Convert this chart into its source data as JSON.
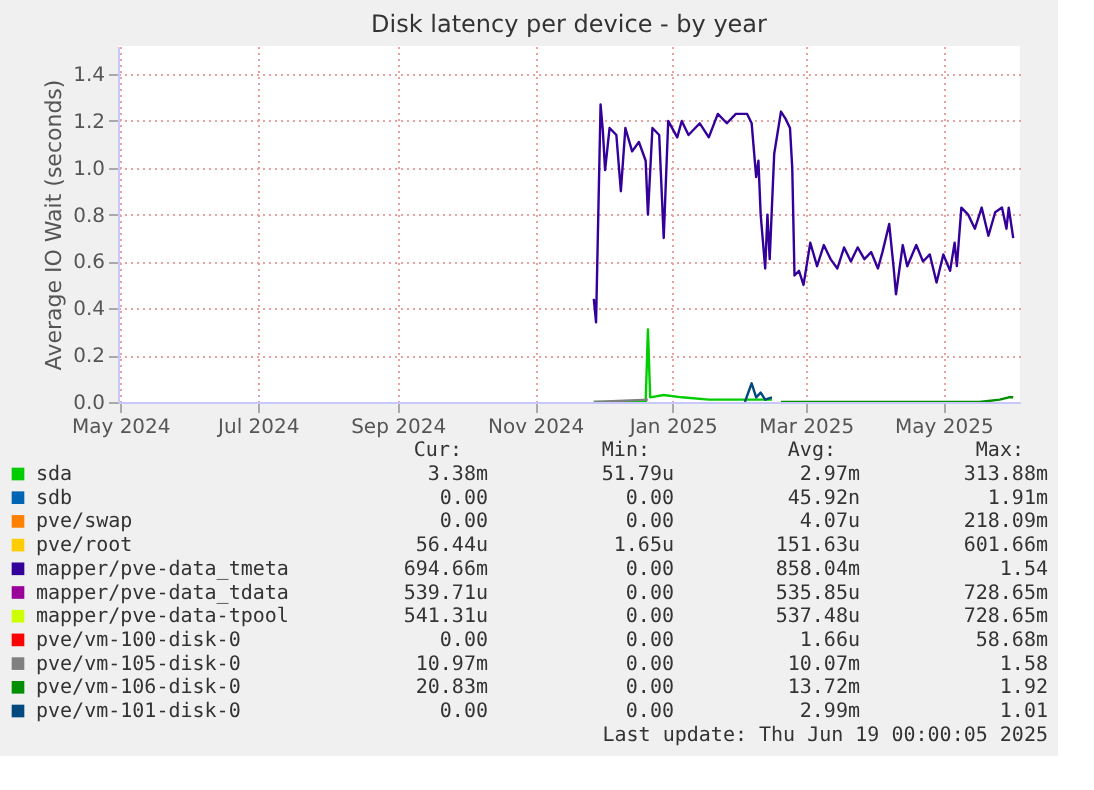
{
  "chart_data": {
    "type": "line",
    "title": "Disk latency per device - by year",
    "ylabel": "Average IO Wait (seconds)",
    "xlim": [
      "2024-05-15",
      "2025-06-19"
    ],
    "xticks": [
      {
        "value": "2024-05-16",
        "label": "May 2024"
      },
      {
        "value": "2024-07-16",
        "label": "Jul 2024"
      },
      {
        "value": "2024-09-16",
        "label": "Sep 2024"
      },
      {
        "value": "2024-11-16",
        "label": "Nov 2024"
      },
      {
        "value": "2025-01-16",
        "label": "Jan 2025"
      },
      {
        "value": "2025-03-16",
        "label": "Mar 2025"
      },
      {
        "value": "2025-05-16",
        "label": "May 2025"
      }
    ],
    "ylim": [
      0,
      1.52
    ],
    "yticks": [
      {
        "value": 0,
        "label": "0.0"
      },
      {
        "value": 0.2,
        "label": "0.2"
      },
      {
        "value": 0.4,
        "label": "0.4"
      },
      {
        "value": 0.6,
        "label": "0.6"
      },
      {
        "value": 0.8,
        "label": "0.8"
      },
      {
        "value": 1,
        "label": "1.0"
      },
      {
        "value": 1.2,
        "label": "1.2"
      },
      {
        "value": 1.4,
        "label": "1.4"
      }
    ],
    "grid": true,
    "legend": "bottom",
    "line_style": "solid",
    "marker": "none",
    "series": [
      {
        "name": "sda",
        "color": "#00cc00",
        "x": [
          "2024-12-12",
          "2025-01-04",
          "2025-01-05",
          "2025-01-06",
          "2025-01-12",
          "2025-01-20",
          "2025-02-01",
          "2025-03-01"
        ],
        "values": [
          0.0,
          0.0,
          0.31,
          0.02,
          0.03,
          0.02,
          0.01,
          0.01
        ]
      },
      {
        "name": "sdb",
        "color": "#0066b3"
      },
      {
        "name": "pve/swap",
        "color": "#ff8000"
      },
      {
        "name": "pve/root",
        "color": "#ffcc00"
      },
      {
        "name": "mapper/pve-data_tmeta",
        "color": "#330099",
        "x": [
          "2024-12-12",
          "2024-12-13",
          "2024-12-15",
          "2024-12-16",
          "2024-12-17",
          "2024-12-19",
          "2024-12-22",
          "2024-12-24",
          "2024-12-26",
          "2024-12-29",
          "2025-01-01",
          "2025-01-04",
          "2025-01-05",
          "2025-01-07",
          "2025-01-10",
          "2025-01-12",
          "2025-01-14",
          "2025-01-18",
          "2025-01-20",
          "2025-01-23",
          "2025-01-28",
          "2025-02-01",
          "2025-02-05",
          "2025-02-09",
          "2025-02-13",
          "2025-02-18",
          "2025-02-20",
          "2025-02-22",
          "2025-02-23",
          "2025-02-24",
          "2025-02-26",
          "2025-02-27",
          "2025-02-28",
          "2025-03-02",
          "2025-03-05",
          "2025-03-07",
          "2025-03-09",
          "2025-03-10",
          "2025-03-11",
          "2025-03-13",
          "2025-03-15",
          "2025-03-18",
          "2025-03-21",
          "2025-03-24",
          "2025-03-27",
          "2025-03-30",
          "2025-04-02",
          "2025-04-05",
          "2025-04-08",
          "2025-04-11",
          "2025-04-14",
          "2025-04-17",
          "2025-04-19",
          "2025-04-22",
          "2025-04-24",
          "2025-04-25",
          "2025-04-28",
          "2025-04-30",
          "2025-05-04",
          "2025-05-07",
          "2025-05-10",
          "2025-05-13",
          "2025-05-16",
          "2025-05-19",
          "2025-05-21",
          "2025-05-22",
          "2025-05-24",
          "2025-05-27",
          "2025-05-30",
          "2025-06-02",
          "2025-06-05",
          "2025-06-08",
          "2025-06-11",
          "2025-06-13",
          "2025-06-14",
          "2025-06-16"
        ],
        "values": [
          0.44,
          0.34,
          1.27,
          1.16,
          0.99,
          1.17,
          1.14,
          0.9,
          1.17,
          1.07,
          1.11,
          1.03,
          0.8,
          1.17,
          1.14,
          0.7,
          1.2,
          1.13,
          1.2,
          1.14,
          1.19,
          1.13,
          1.23,
          1.19,
          1.23,
          1.23,
          1.19,
          0.96,
          1.03,
          0.8,
          0.57,
          0.8,
          0.61,
          1.06,
          1.24,
          1.21,
          1.17,
          1.0,
          0.54,
          0.56,
          0.5,
          0.68,
          0.58,
          0.67,
          0.61,
          0.57,
          0.66,
          0.6,
          0.66,
          0.61,
          0.64,
          0.57,
          0.64,
          0.76,
          0.57,
          0.46,
          0.67,
          0.58,
          0.67,
          0.6,
          0.63,
          0.51,
          0.63,
          0.56,
          0.68,
          0.58,
          0.83,
          0.8,
          0.74,
          0.83,
          0.71,
          0.81,
          0.83,
          0.74,
          0.83,
          0.7
        ]
      },
      {
        "name": "mapper/pve-data_tdata",
        "color": "#990099"
      },
      {
        "name": "mapper/pve-data-tpool",
        "color": "#ccff00"
      },
      {
        "name": "pve/vm-100-disk-0",
        "color": "#ff0000"
      },
      {
        "name": "pve/vm-105-disk-0",
        "color": "#808080",
        "x": [
          "2024-12-12",
          "2025-01-05"
        ],
        "values": [
          0.0,
          0.01
        ]
      },
      {
        "name": "pve/vm-106-disk-0",
        "color": "#008f00",
        "x": [
          "2025-03-05",
          "2025-04-01",
          "2025-05-01",
          "2025-06-01",
          "2025-06-10",
          "2025-06-14",
          "2025-06-16"
        ],
        "values": [
          0.0,
          0.0,
          0.0,
          0.0,
          0.01,
          0.02,
          0.02
        ]
      },
      {
        "name": "pve/vm-101-disk-0",
        "color": "#00487d",
        "x": [
          "2025-02-17",
          "2025-02-20",
          "2025-02-22",
          "2025-02-24",
          "2025-02-26",
          "2025-03-01"
        ],
        "values": [
          0.0,
          0.08,
          0.02,
          0.04,
          0.01,
          0.02
        ]
      }
    ],
    "annotations": [
      "Cur:",
      "Min:",
      "Avg:",
      "Max:",
      "3.38m",
      "51.79u",
      "2.97m",
      "313.88m",
      "0.00",
      "0.00",
      "45.92n",
      "1.91m",
      "0.00",
      "0.00",
      "4.07u",
      "218.09m",
      "56.44u",
      "1.65u",
      "151.63u",
      "601.66m",
      "694.66m",
      "0.00",
      "858.04m",
      "1.54",
      "539.71u",
      "0.00",
      "535.85u",
      "728.65m",
      "541.31u",
      "0.00",
      "537.48u",
      "728.65m",
      "0.00",
      "0.00",
      "1.66u",
      "58.68m",
      "10.97m",
      "0.00",
      "10.07m",
      "1.58",
      "20.83m",
      "0.00",
      "13.72m",
      "1.92",
      "0.00",
      "0.00",
      "2.99m",
      "1.01",
      "Last update: Thu Jun 19 00:00:05 2025"
    ]
  }
}
